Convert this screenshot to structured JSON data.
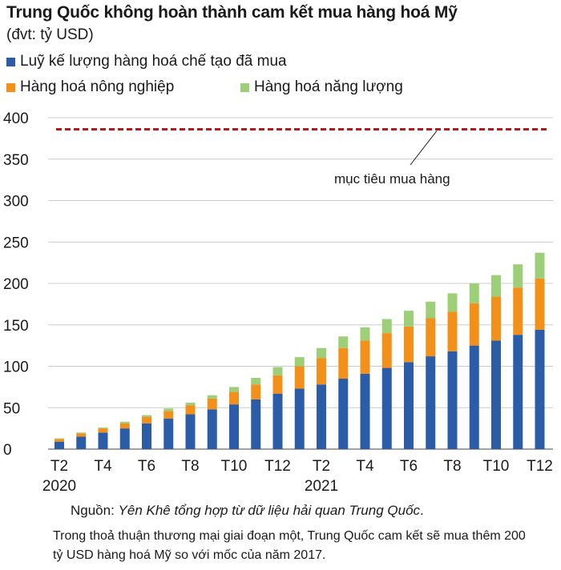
{
  "chart_data": {
    "type": "bar",
    "stacked": true,
    "title": "Trung Quốc không hoàn thành cam kết mua hàng hoá Mỹ",
    "subtitle": "(đvt: tỷ USD)",
    "categories": [
      "T2",
      "T3",
      "T4",
      "T5",
      "T6",
      "T7",
      "T8",
      "T9",
      "T10",
      "T11",
      "T12",
      "T1",
      "T2",
      "T3",
      "T4",
      "T5",
      "T6",
      "T7",
      "T8",
      "T9",
      "T10",
      "T11",
      "T12"
    ],
    "x_tick_labels": [
      "T2",
      "T4",
      "T6",
      "T8",
      "T10",
      "T12",
      "T2",
      "T4",
      "T6",
      "T8",
      "T10",
      "T12"
    ],
    "year_labels": [
      "2020",
      "2021"
    ],
    "series": [
      {
        "name": "Luỹ kế lượng hàng hoá chế tạo đã mua",
        "color": "#2a5ca8",
        "values": [
          9,
          15,
          20,
          25,
          31,
          37,
          42,
          48,
          54,
          60,
          67,
          73,
          78,
          85,
          91,
          98,
          105,
          112,
          118,
          125,
          131,
          138,
          144
        ]
      },
      {
        "name": "Hàng hoá nông nghiệp",
        "color": "#f39019",
        "values": [
          3,
          4,
          5,
          6,
          8,
          9,
          11,
          13,
          15,
          18,
          22,
          27,
          32,
          37,
          40,
          42,
          43,
          46,
          48,
          51,
          53,
          57,
          62
        ]
      },
      {
        "name": "Hàng hoá năng lượng",
        "color": "#9dcf79",
        "values": [
          1,
          1,
          1,
          2,
          2,
          3,
          3,
          4,
          6,
          8,
          10,
          11,
          12,
          14,
          16,
          17,
          19,
          20,
          22,
          24,
          26,
          28,
          31
        ]
      }
    ],
    "target": {
      "value": 386,
      "label": "mục tiêu mua hàng",
      "color": "#b5191c"
    },
    "ylim": [
      0,
      400
    ],
    "yticks": [
      0,
      50,
      100,
      150,
      200,
      250,
      300,
      350,
      400
    ],
    "grid": true,
    "legend_position": "top-left"
  },
  "source_label": "Nguồn: ",
  "source_text": "Yên Khê tổng hợp từ dữ liệu hải quan Trung Quốc",
  "source_end": ".",
  "note": "Trong thoả thuận thương mại giai đoạn một, Trung Quốc cam kết sẽ mua thêm 200 tỷ USD hàng hoá Mỹ so với mốc của năm 2017."
}
